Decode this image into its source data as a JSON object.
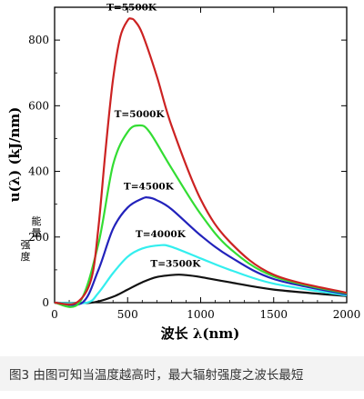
{
  "chart_data": {
    "type": "line",
    "xlabel": "波长 λ(nm)",
    "ylabel": "u(λ) (kJ/nm)",
    "ylabel_side": "能量强度",
    "xlim": [
      0,
      2000
    ],
    "ylim": [
      0,
      900
    ],
    "xticks": [
      0,
      500,
      1000,
      1500,
      2000
    ],
    "yticks": [
      0,
      200,
      400,
      600,
      800
    ],
    "grid": false,
    "series": [
      {
        "name": "T=5500K",
        "T": 5500,
        "color": "#cc2222",
        "x": [
          0,
          150,
          250,
          300,
          350,
          400,
          450,
          500,
          527,
          550,
          600,
          700,
          800,
          1000,
          1200,
          1500,
          2000
        ],
        "y": [
          0,
          0,
          70,
          230,
          470,
          680,
          810,
          860,
          865,
          858,
          820,
          690,
          540,
          315,
          185,
          85,
          30
        ]
      },
      {
        "name": "T=5000K",
        "T": 5000,
        "color": "#33dd33",
        "x": [
          0,
          170,
          300,
          400,
          500,
          580,
          650,
          800,
          1000,
          1200,
          1500,
          2000
        ],
        "y": [
          0,
          0,
          180,
          420,
          520,
          540,
          520,
          410,
          270,
          165,
          80,
          28
        ]
      },
      {
        "name": "T=4500K",
        "T": 4500,
        "color": "#2222bb",
        "x": [
          0,
          190,
          300,
          400,
          500,
          600,
          644,
          700,
          800,
          1000,
          1200,
          1500,
          2000
        ],
        "y": [
          0,
          0,
          100,
          225,
          290,
          317,
          320,
          312,
          285,
          205,
          140,
          72,
          25
        ]
      },
      {
        "name": "T=4000K",
        "T": 4000,
        "color": "#33eeee",
        "x": [
          0,
          220,
          300,
          400,
          500,
          600,
          725,
          800,
          1000,
          1200,
          1500,
          2000
        ],
        "y": [
          0,
          0,
          30,
          90,
          140,
          165,
          175,
          170,
          135,
          100,
          58,
          22
        ]
      },
      {
        "name": "T=3500K",
        "T": 3500,
        "color": "#111111",
        "x": [
          0,
          250,
          400,
          500,
          600,
          700,
          828,
          900,
          1000,
          1200,
          1500,
          2000
        ],
        "y": [
          0,
          0,
          18,
          40,
          62,
          78,
          85,
          84,
          78,
          62,
          40,
          20
        ]
      }
    ]
  },
  "caption": "图3 由图可知当温度越高时，最大辐射强度之波长最短"
}
